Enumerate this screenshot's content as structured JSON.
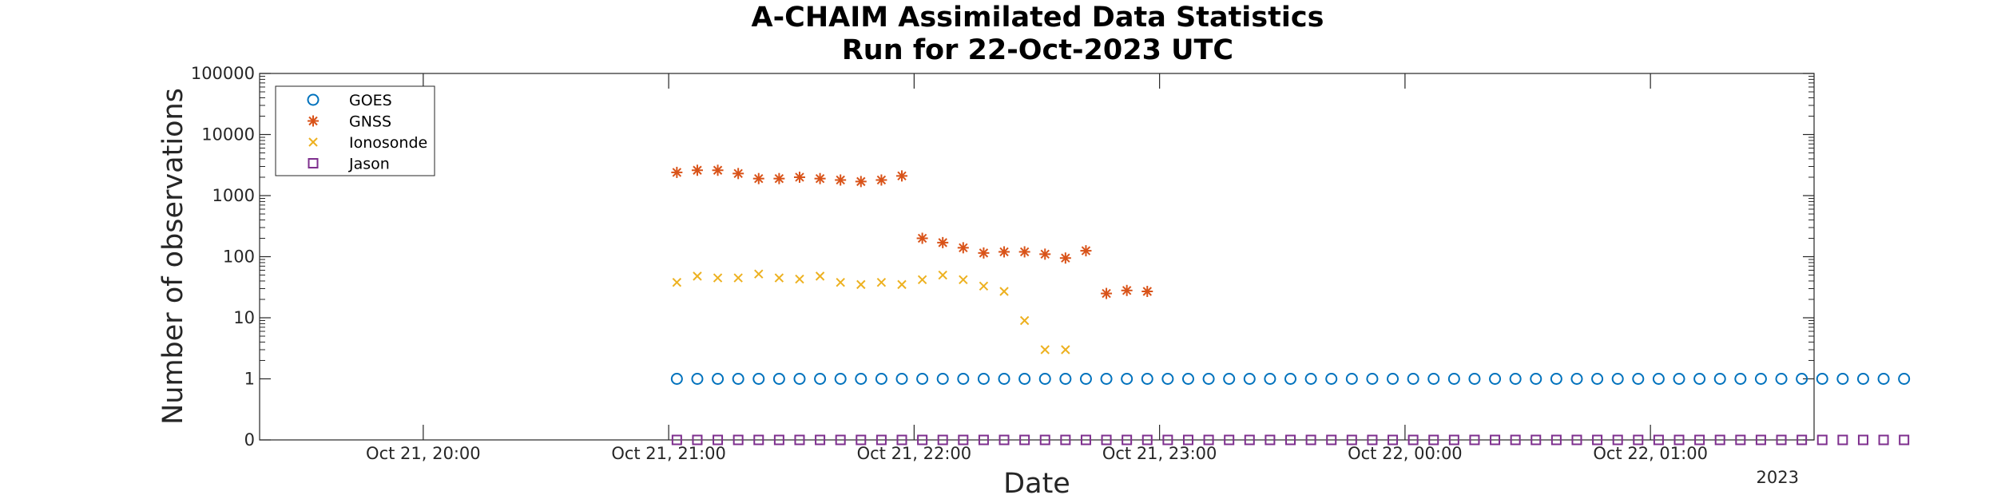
{
  "chart_data": {
    "type": "scatter",
    "title": "A-CHAIM Assimilated Data Statistics",
    "subtitle": "Run for 22-Oct-2023 UTC",
    "xlabel": "Date",
    "ylabel": "Number of observations",
    "x_secondary_label": "2023",
    "yscale": "log",
    "ylim": [
      0,
      100000
    ],
    "xlim": [
      "2023-10-21 19:20",
      "2023-10-22 01:40"
    ],
    "x_ticks": [
      {
        "t": "2023-10-21 20:00",
        "label": "Oct 21, 20:00"
      },
      {
        "t": "2023-10-21 21:00",
        "label": "Oct 21, 21:00"
      },
      {
        "t": "2023-10-21 22:00",
        "label": "Oct 21, 22:00"
      },
      {
        "t": "2023-10-21 23:00",
        "label": "Oct 21, 23:00"
      },
      {
        "t": "2023-10-22 00:00",
        "label": "Oct 22, 00:00"
      },
      {
        "t": "2023-10-22 01:00",
        "label": "Oct 22, 01:00"
      }
    ],
    "y_ticks": [
      {
        "v": 0,
        "label": "0"
      },
      {
        "v": 1,
        "label": "1"
      },
      {
        "v": 10,
        "label": "10"
      },
      {
        "v": 100,
        "label": "100"
      },
      {
        "v": 1000,
        "label": "1000"
      },
      {
        "v": 10000,
        "label": "10000"
      },
      {
        "v": 100000,
        "label": "100000"
      }
    ],
    "grid": false,
    "legend_position": "top-left",
    "series": [
      {
        "name": "GOES",
        "marker": "circle",
        "color": "#0072BD",
        "start": "2023-10-21 21:02",
        "step_minutes": 5,
        "values": [
          1,
          1,
          1,
          1,
          1,
          1,
          1,
          1,
          1,
          1,
          1,
          1,
          1,
          1,
          1,
          1,
          1,
          1,
          1,
          1,
          1,
          1,
          1,
          1,
          1,
          1,
          1,
          1,
          1,
          1,
          1,
          1,
          1,
          1,
          1,
          1,
          1,
          1,
          1,
          1,
          1,
          1,
          1,
          1,
          1,
          1,
          1,
          1,
          1,
          1,
          1,
          1,
          1,
          1,
          1,
          1,
          1,
          1,
          1,
          1,
          1
        ]
      },
      {
        "name": "GNSS",
        "marker": "asterisk",
        "color": "#D95319",
        "start": "2023-10-21 21:02",
        "step_minutes": 5,
        "values": [
          2400,
          2600,
          2600,
          2300,
          1900,
          1900,
          2000,
          1900,
          1800,
          1700,
          1800,
          2100,
          200,
          170,
          140,
          115,
          120,
          120,
          110,
          95,
          125,
          25,
          28,
          27
        ]
      },
      {
        "name": "Ionosonde",
        "marker": "x",
        "color": "#EDB120",
        "start": "2023-10-21 21:02",
        "step_minutes": 5,
        "values": [
          38,
          48,
          45,
          45,
          52,
          45,
          43,
          48,
          38,
          35,
          38,
          35,
          42,
          50,
          42,
          33,
          27,
          9,
          3,
          3
        ]
      },
      {
        "name": "Jason",
        "marker": "square",
        "color": "#7E2F8E",
        "start": "2023-10-21 21:02",
        "step_minutes": 5,
        "values": [
          0,
          0,
          0,
          0,
          0,
          0,
          0,
          0,
          0,
          0,
          0,
          0,
          0,
          0,
          0,
          0,
          0,
          0,
          0,
          0,
          0,
          0,
          0,
          0,
          0,
          0,
          0,
          0,
          0,
          0,
          0,
          0,
          0,
          0,
          0,
          0,
          0,
          0,
          0,
          0,
          0,
          0,
          0,
          0,
          0,
          0,
          0,
          0,
          0,
          0,
          0,
          0,
          0,
          0,
          0,
          0,
          0,
          0,
          0,
          0,
          0
        ]
      }
    ]
  }
}
